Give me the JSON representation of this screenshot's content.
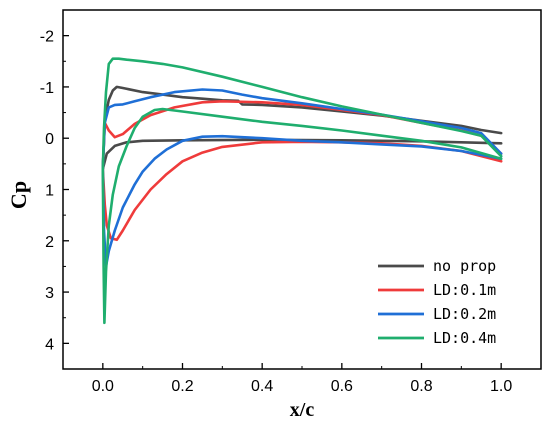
{
  "chart_data": {
    "type": "line",
    "title": "",
    "xlabel": "x/c",
    "ylabel": "Cp",
    "xlim": [
      -0.1,
      1.1
    ],
    "ylim": [
      -2.5,
      4.5
    ],
    "y_inverted": true,
    "grid": false,
    "legend_position": "bottom-right",
    "x_ticks": [
      "0.0",
      "0.2",
      "0.4",
      "0.6",
      "0.8",
      "1.0"
    ],
    "y_ticks": [
      "-2",
      "-1",
      "0",
      "1",
      "2",
      "3",
      "4"
    ],
    "series": [
      {
        "name": "no prop",
        "color": "#4a4a4a",
        "upper": [
          [
            0.0,
            0.6
          ],
          [
            0.005,
            -0.35
          ],
          [
            0.015,
            -0.75
          ],
          [
            0.025,
            -0.93
          ],
          [
            0.035,
            -1.0
          ],
          [
            0.05,
            -0.98
          ],
          [
            0.1,
            -0.9
          ],
          [
            0.15,
            -0.85
          ],
          [
            0.2,
            -0.8
          ],
          [
            0.25,
            -0.77
          ],
          [
            0.3,
            -0.74
          ],
          [
            0.34,
            -0.73
          ],
          [
            0.35,
            -0.66
          ],
          [
            0.4,
            -0.65
          ],
          [
            0.5,
            -0.6
          ],
          [
            0.6,
            -0.52
          ],
          [
            0.7,
            -0.44
          ],
          [
            0.8,
            -0.34
          ],
          [
            0.9,
            -0.24
          ],
          [
            0.95,
            -0.16
          ],
          [
            1.0,
            -0.1
          ]
        ],
        "lower": [
          [
            0.0,
            0.6
          ],
          [
            0.01,
            0.3
          ],
          [
            0.03,
            0.15
          ],
          [
            0.06,
            0.08
          ],
          [
            0.1,
            0.05
          ],
          [
            0.2,
            0.04
          ],
          [
            0.4,
            0.03
          ],
          [
            0.6,
            0.04
          ],
          [
            0.8,
            0.06
          ],
          [
            1.0,
            0.1
          ]
        ]
      },
      {
        "name": "LD:0.1m",
        "color": "#ef3b3b",
        "upper": [
          [
            0.0,
            0.6
          ],
          [
            0.005,
            -0.3
          ],
          [
            0.015,
            -0.15
          ],
          [
            0.03,
            -0.02
          ],
          [
            0.05,
            -0.08
          ],
          [
            0.08,
            -0.28
          ],
          [
            0.12,
            -0.45
          ],
          [
            0.18,
            -0.6
          ],
          [
            0.25,
            -0.7
          ],
          [
            0.3,
            -0.72
          ],
          [
            0.4,
            -0.7
          ],
          [
            0.5,
            -0.65
          ],
          [
            0.6,
            -0.55
          ],
          [
            0.7,
            -0.45
          ],
          [
            0.8,
            -0.3
          ],
          [
            0.9,
            -0.15
          ],
          [
            0.95,
            -0.05
          ],
          [
            1.0,
            0.3
          ]
        ],
        "lower": [
          [
            0.0,
            0.6
          ],
          [
            0.005,
            1.3
          ],
          [
            0.01,
            1.7
          ],
          [
            0.02,
            1.95
          ],
          [
            0.035,
            1.98
          ],
          [
            0.05,
            1.8
          ],
          [
            0.08,
            1.4
          ],
          [
            0.12,
            1.0
          ],
          [
            0.16,
            0.7
          ],
          [
            0.2,
            0.45
          ],
          [
            0.25,
            0.28
          ],
          [
            0.3,
            0.17
          ],
          [
            0.4,
            0.08
          ],
          [
            0.5,
            0.07
          ],
          [
            0.6,
            0.08
          ],
          [
            0.7,
            0.1
          ],
          [
            0.8,
            0.15
          ],
          [
            0.9,
            0.25
          ],
          [
            1.0,
            0.45
          ]
        ]
      },
      {
        "name": "LD:0.2m",
        "color": "#1f6fd6",
        "upper": [
          [
            0.0,
            0.6
          ],
          [
            0.005,
            -0.3
          ],
          [
            0.015,
            -0.6
          ],
          [
            0.03,
            -0.65
          ],
          [
            0.05,
            -0.66
          ],
          [
            0.08,
            -0.72
          ],
          [
            0.12,
            -0.8
          ],
          [
            0.18,
            -0.9
          ],
          [
            0.25,
            -0.95
          ],
          [
            0.3,
            -0.93
          ],
          [
            0.35,
            -0.85
          ],
          [
            0.4,
            -0.78
          ],
          [
            0.5,
            -0.68
          ],
          [
            0.6,
            -0.57
          ],
          [
            0.7,
            -0.46
          ],
          [
            0.8,
            -0.33
          ],
          [
            0.9,
            -0.2
          ],
          [
            0.95,
            -0.1
          ],
          [
            1.0,
            0.3
          ]
        ],
        "lower": [
          [
            0.0,
            0.6
          ],
          [
            0.003,
            1.8
          ],
          [
            0.008,
            2.5
          ],
          [
            0.015,
            2.2
          ],
          [
            0.03,
            1.8
          ],
          [
            0.05,
            1.35
          ],
          [
            0.08,
            0.9
          ],
          [
            0.1,
            0.65
          ],
          [
            0.13,
            0.4
          ],
          [
            0.16,
            0.22
          ],
          [
            0.2,
            0.05
          ],
          [
            0.25,
            -0.03
          ],
          [
            0.3,
            -0.04
          ],
          [
            0.4,
            0.0
          ],
          [
            0.5,
            0.05
          ],
          [
            0.6,
            0.08
          ],
          [
            0.7,
            0.12
          ],
          [
            0.8,
            0.16
          ],
          [
            0.9,
            0.25
          ],
          [
            1.0,
            0.4
          ]
        ]
      },
      {
        "name": "LD:0.4m",
        "color": "#1fae6e",
        "upper": [
          [
            0.0,
            0.6
          ],
          [
            0.003,
            -0.2
          ],
          [
            0.008,
            -0.9
          ],
          [
            0.015,
            -1.45
          ],
          [
            0.025,
            -1.55
          ],
          [
            0.04,
            -1.55
          ],
          [
            0.06,
            -1.53
          ],
          [
            0.1,
            -1.5
          ],
          [
            0.15,
            -1.45
          ],
          [
            0.2,
            -1.38
          ],
          [
            0.3,
            -1.2
          ],
          [
            0.4,
            -1.0
          ],
          [
            0.5,
            -0.8
          ],
          [
            0.6,
            -0.62
          ],
          [
            0.7,
            -0.46
          ],
          [
            0.8,
            -0.3
          ],
          [
            0.9,
            -0.14
          ],
          [
            0.95,
            -0.05
          ],
          [
            1.0,
            0.35
          ]
        ],
        "lower": [
          [
            0.0,
            0.6
          ],
          [
            0.002,
            2.5
          ],
          [
            0.004,
            3.6
          ],
          [
            0.008,
            2.6
          ],
          [
            0.015,
            1.7
          ],
          [
            0.025,
            1.1
          ],
          [
            0.04,
            0.55
          ],
          [
            0.06,
            0.15
          ],
          [
            0.08,
            -0.2
          ],
          [
            0.1,
            -0.42
          ],
          [
            0.13,
            -0.55
          ],
          [
            0.15,
            -0.57
          ],
          [
            0.2,
            -0.52
          ],
          [
            0.3,
            -0.42
          ],
          [
            0.4,
            -0.32
          ],
          [
            0.5,
            -0.24
          ],
          [
            0.6,
            -0.15
          ],
          [
            0.7,
            -0.05
          ],
          [
            0.8,
            0.05
          ],
          [
            0.9,
            0.18
          ],
          [
            1.0,
            0.4
          ]
        ]
      }
    ]
  }
}
